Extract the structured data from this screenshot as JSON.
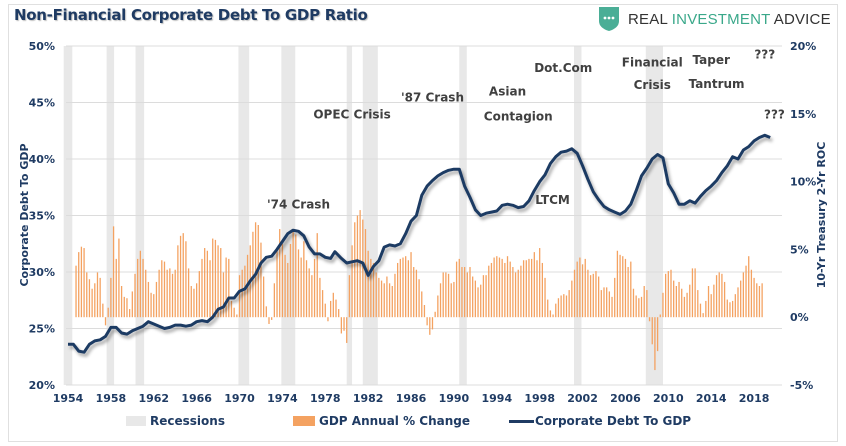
{
  "header": {
    "title": "Non-Financial Corporate Debt To GDP Ratio",
    "brand": {
      "part1": "REAL ",
      "part2": "INVESTMENT",
      "part3": " ADVICE",
      "accent_color": "#3aa88a"
    }
  },
  "chart_data": {
    "type": "bar+line",
    "title": "Non-Financial Corporate Debt To GDP Ratio",
    "xlabel": "",
    "ylabel_left": "Corporate Debt To GDP",
    "ylabel_right": "10-Yr Treasury 2-Yr ROC",
    "xlim": [
      1954,
      2019.6
    ],
    "ylim_left": [
      20,
      50
    ],
    "ylim_right": [
      -5,
      20
    ],
    "x_ticks": [
      "1954",
      "1958",
      "1962",
      "1966",
      "1970",
      "1974",
      "1978",
      "1982",
      "1986",
      "1990",
      "1994",
      "1998",
      "2002",
      "2006",
      "2010",
      "2014",
      "2018"
    ],
    "y_ticks_left": [
      "20%",
      "25%",
      "30%",
      "35%",
      "40%",
      "45%",
      "50%"
    ],
    "y_ticks_right": [
      "-5%",
      "0%",
      "5%",
      "10%",
      "15%",
      "20%"
    ],
    "grid": true,
    "legend_position": "bottom",
    "legend": [
      "Recessions",
      "GDP Annual % Change",
      "Corporate Debt To GDP"
    ],
    "colors": {
      "recessions": "#e8e8e8",
      "gdp": "#f4a261",
      "debt": "#1f3b63"
    },
    "recessions": [
      [
        1953.6,
        1954.4
      ],
      [
        1957.6,
        1958.3
      ],
      [
        1960.3,
        1961.1
      ],
      [
        1969.9,
        1970.9
      ],
      [
        1973.9,
        1975.2
      ],
      [
        1980.0,
        1980.5
      ],
      [
        1981.5,
        1982.9
      ],
      [
        1990.5,
        1991.2
      ],
      [
        2001.2,
        2001.9
      ],
      [
        2007.9,
        2009.5
      ]
    ],
    "gdp_series": {
      "name": "GDP Annual % Change",
      "axis": "right",
      "start": 1954.75,
      "step": 0.25,
      "values": [
        3.8,
        4.8,
        5.2,
        5.1,
        3.3,
        2.8,
        2.1,
        2.5,
        3.3,
        2.9,
        1.0,
        -0.6,
        0.7,
        2.9,
        6.7,
        4.3,
        5.8,
        2.3,
        1.5,
        1.4,
        0.6,
        1.9,
        3.2,
        4.3,
        4.9,
        4.3,
        3.5,
        2.6,
        1.8,
        1.7,
        2.6,
        3.5,
        4.2,
        4.1,
        3.5,
        3.6,
        3.2,
        3.5,
        5.3,
        6.0,
        6.2,
        5.6,
        3.6,
        2.3,
        2.1,
        2.5,
        3.4,
        4.3,
        5.1,
        4.9,
        4.2,
        5.8,
        5.7,
        5.3,
        5.1,
        3.3,
        4.4,
        4.3,
        1.2,
        0.7,
        0.2,
        3.1,
        3.5,
        3.8,
        4.6,
        5.3,
        6.3,
        7.0,
        6.8,
        5.5,
        3.0,
        0.8,
        -0.5,
        -0.2,
        2.5,
        5.1,
        6.5,
        5.4,
        4.6,
        4.0,
        5.4,
        6.5,
        6.1,
        5.0,
        4.4,
        5.6,
        4.2,
        3.6,
        3.1,
        4.3,
        6.2,
        2.9,
        2.0,
        1.0,
        -0.3,
        1.2,
        1.8,
        1.3,
        0.6,
        -1.2,
        -1.0,
        -1.9,
        3.1,
        5.3,
        7.0,
        7.5,
        7.9,
        7.2,
        6.5,
        4.9,
        4.3,
        4.0,
        3.3,
        2.9,
        2.7,
        2.5,
        3.0,
        2.5,
        2.3,
        3.2,
        4.0,
        4.3,
        4.4,
        4.5,
        4.2,
        4.8,
        3.7,
        3.5,
        2.8,
        1.9,
        0.9,
        -0.6,
        -1.3,
        -0.9,
        0.4,
        1.6,
        2.5,
        3.3,
        3.3,
        3.2,
        2.5,
        2.6,
        4.1,
        4.3,
        3.7,
        3.7,
        3.3,
        3.7,
        3.0,
        2.7,
        2.2,
        2.4,
        3.1,
        3.1,
        3.8,
        4.0,
        4.4,
        4.5,
        4.4,
        4.3,
        4.0,
        4.5,
        4.1,
        3.7,
        3.3,
        3.5,
        3.8,
        4.2,
        4.2,
        4.3,
        4.3,
        4.8,
        4.2,
        5.1,
        4.0,
        2.9,
        1.3,
        0.5,
        0.2,
        1.0,
        1.4,
        1.6,
        1.7,
        1.6,
        2.0,
        2.7,
        3.5,
        4.1,
        4.4,
        3.9,
        4.3,
        3.5,
        3.1,
        3.2,
        3.4,
        3.0,
        2.0,
        2.2,
        2.2,
        1.9,
        1.5,
        2.9,
        4.9,
        4.6,
        4.5,
        4.3,
        3.7,
        4.1,
        2.1,
        1.6,
        1.4,
        1.5,
        2.3,
        2.0,
        -0.3,
        -2.0,
        -3.9,
        -2.5,
        0.2,
        1.8,
        3.2,
        3.4,
        3.5,
        2.7,
        2.3,
        2.6,
        2.1,
        1.5,
        1.8,
        2.4,
        3.6,
        3.6,
        2.0,
        1.0,
        0.3,
        1.2,
        2.3,
        1.7,
        2.4,
        3.1,
        3.3,
        3.2,
        2.6,
        1.3,
        1.1,
        1.2,
        1.7,
        2.2,
        2.7,
        3.3,
        3.8,
        4.5,
        3.5,
        2.9,
        2.5,
        2.3,
        2.5
      ]
    },
    "debt_series": {
      "name": "Corporate Debt To GDP",
      "axis": "left",
      "points": [
        [
          1954.0,
          23.6
        ],
        [
          1954.5,
          23.6
        ],
        [
          1955.0,
          23.0
        ],
        [
          1955.5,
          22.9
        ],
        [
          1956.0,
          23.6
        ],
        [
          1956.5,
          23.9
        ],
        [
          1957.0,
          24.0
        ],
        [
          1957.5,
          24.3
        ],
        [
          1958.0,
          25.1
        ],
        [
          1958.5,
          25.1
        ],
        [
          1959.0,
          24.6
        ],
        [
          1959.5,
          24.5
        ],
        [
          1960.0,
          24.8
        ],
        [
          1960.5,
          25.0
        ],
        [
          1961.0,
          25.2
        ],
        [
          1961.5,
          25.6
        ],
        [
          1962.0,
          25.4
        ],
        [
          1962.5,
          25.2
        ],
        [
          1963.0,
          25.0
        ],
        [
          1963.5,
          25.1
        ],
        [
          1964.0,
          25.3
        ],
        [
          1964.5,
          25.3
        ],
        [
          1965.0,
          25.2
        ],
        [
          1965.5,
          25.3
        ],
        [
          1966.0,
          25.6
        ],
        [
          1966.5,
          25.7
        ],
        [
          1967.0,
          25.6
        ],
        [
          1967.5,
          26.0
        ],
        [
          1968.0,
          26.7
        ],
        [
          1968.5,
          26.9
        ],
        [
          1969.0,
          27.7
        ],
        [
          1969.5,
          27.7
        ],
        [
          1970.0,
          28.3
        ],
        [
          1970.5,
          28.5
        ],
        [
          1971.0,
          29.2
        ],
        [
          1971.5,
          29.8
        ],
        [
          1972.0,
          30.8
        ],
        [
          1972.5,
          31.3
        ],
        [
          1973.0,
          31.4
        ],
        [
          1973.5,
          32.0
        ],
        [
          1974.0,
          32.7
        ],
        [
          1974.5,
          33.4
        ],
        [
          1975.0,
          33.7
        ],
        [
          1975.5,
          33.6
        ],
        [
          1976.0,
          33.2
        ],
        [
          1976.5,
          32.2
        ],
        [
          1977.0,
          31.6
        ],
        [
          1977.5,
          31.6
        ],
        [
          1978.0,
          31.3
        ],
        [
          1978.5,
          31.2
        ],
        [
          1978.9,
          31.8
        ],
        [
          1979.2,
          31.5
        ],
        [
          1979.5,
          31.2
        ],
        [
          1980.0,
          30.8
        ],
        [
          1980.5,
          30.9
        ],
        [
          1981.0,
          31.0
        ],
        [
          1981.5,
          30.8
        ],
        [
          1982.0,
          29.7
        ],
        [
          1982.5,
          30.5
        ],
        [
          1983.0,
          31.0
        ],
        [
          1983.5,
          32.2
        ],
        [
          1984.0,
          32.4
        ],
        [
          1984.5,
          32.3
        ],
        [
          1985.0,
          32.5
        ],
        [
          1985.5,
          33.4
        ],
        [
          1986.0,
          34.5
        ],
        [
          1986.5,
          35.0
        ],
        [
          1987.0,
          36.8
        ],
        [
          1987.5,
          37.6
        ],
        [
          1988.0,
          38.1
        ],
        [
          1988.5,
          38.5
        ],
        [
          1989.0,
          38.8
        ],
        [
          1989.5,
          39.0
        ],
        [
          1990.0,
          39.1
        ],
        [
          1990.5,
          39.1
        ],
        [
          1991.0,
          37.6
        ],
        [
          1991.5,
          36.6
        ],
        [
          1992.0,
          35.5
        ],
        [
          1992.5,
          35.0
        ],
        [
          1993.0,
          35.2
        ],
        [
          1993.5,
          35.3
        ],
        [
          1994.0,
          35.4
        ],
        [
          1994.5,
          35.9
        ],
        [
          1995.0,
          36.0
        ],
        [
          1995.5,
          35.9
        ],
        [
          1996.0,
          35.7
        ],
        [
          1996.5,
          35.8
        ],
        [
          1997.0,
          36.3
        ],
        [
          1997.5,
          37.2
        ],
        [
          1998.0,
          38.0
        ],
        [
          1998.5,
          38.6
        ],
        [
          1999.0,
          39.6
        ],
        [
          1999.5,
          40.2
        ],
        [
          2000.0,
          40.6
        ],
        [
          2000.5,
          40.7
        ],
        [
          2001.0,
          40.9
        ],
        [
          2001.5,
          40.5
        ],
        [
          2002.0,
          39.4
        ],
        [
          2002.5,
          38.2
        ],
        [
          2003.0,
          37.1
        ],
        [
          2003.5,
          36.4
        ],
        [
          2004.0,
          35.8
        ],
        [
          2004.5,
          35.5
        ],
        [
          2005.0,
          35.3
        ],
        [
          2005.5,
          35.1
        ],
        [
          2006.0,
          35.4
        ],
        [
          2006.5,
          36.0
        ],
        [
          2007.0,
          37.2
        ],
        [
          2007.5,
          38.5
        ],
        [
          2008.0,
          39.2
        ],
        [
          2008.5,
          40.0
        ],
        [
          2009.0,
          40.4
        ],
        [
          2009.5,
          40.1
        ],
        [
          2010.0,
          37.8
        ],
        [
          2010.5,
          37.0
        ],
        [
          2011.0,
          36.0
        ],
        [
          2011.5,
          36.0
        ],
        [
          2012.0,
          36.3
        ],
        [
          2012.5,
          36.1
        ],
        [
          2013.0,
          36.7
        ],
        [
          2013.5,
          37.2
        ],
        [
          2014.0,
          37.6
        ],
        [
          2014.5,
          38.1
        ],
        [
          2015.0,
          38.8
        ],
        [
          2015.5,
          39.4
        ],
        [
          2016.0,
          40.2
        ],
        [
          2016.5,
          40.0
        ],
        [
          2017.0,
          40.8
        ],
        [
          2017.5,
          41.1
        ],
        [
          2018.0,
          41.6
        ],
        [
          2018.5,
          41.9
        ],
        [
          2019.0,
          42.1
        ],
        [
          2019.5,
          41.9
        ]
      ]
    },
    "annotations": [
      {
        "text": "'74 Crash",
        "x": 1975.5,
        "y": 35.6
      },
      {
        "text": "OPEC Crisis",
        "x": 1980.5,
        "y": 43.6
      },
      {
        "text": "'87 Crash",
        "x": 1988.0,
        "y": 45.1
      },
      {
        "text": "Asian",
        "x": 1995.0,
        "y": 45.6
      },
      {
        "text": "Contagion",
        "x": 1996.0,
        "y": 43.4
      },
      {
        "text": "Dot.Com",
        "x": 2000.2,
        "y": 47.7
      },
      {
        "text": "LTCM",
        "x": 1999.2,
        "y": 36.0
      },
      {
        "text": "Financial",
        "x": 2008.5,
        "y": 48.2
      },
      {
        "text": "Crisis",
        "x": 2008.5,
        "y": 46.2
      },
      {
        "text": "Taper",
        "x": 2014.0,
        "y": 48.4
      },
      {
        "text": "Tantrum",
        "x": 2014.5,
        "y": 46.3
      },
      {
        "text": "???",
        "x": 2019.0,
        "y": 48.9
      },
      {
        "text": "???",
        "x": 2019.9,
        "y": 43.6
      }
    ]
  }
}
